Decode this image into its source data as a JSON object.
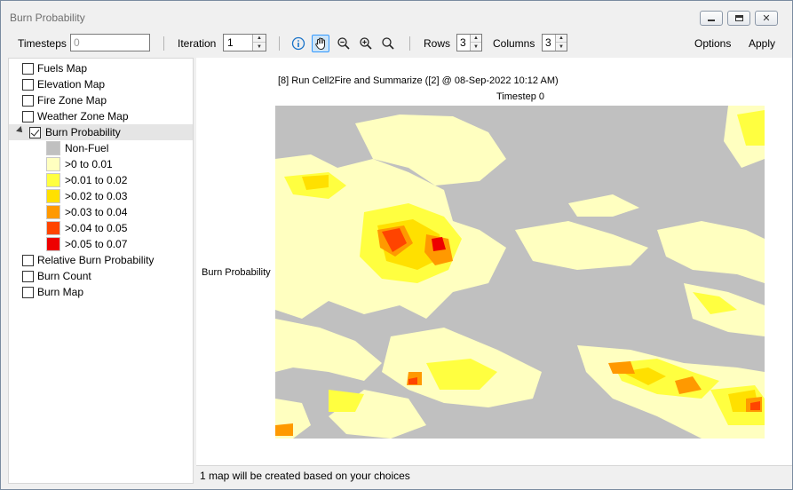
{
  "window": {
    "title": "Burn Probability"
  },
  "toolbar": {
    "timesteps_label": "Timesteps",
    "timesteps_value": "0",
    "iteration_label": "Iteration",
    "iteration_value": "1",
    "rows_label": "Rows",
    "rows_value": "3",
    "columns_label": "Columns",
    "columns_value": "3",
    "options_label": "Options",
    "apply_label": "Apply"
  },
  "tree": {
    "items": [
      {
        "label": "Fuels Map",
        "checked": false
      },
      {
        "label": "Elevation Map",
        "checked": false
      },
      {
        "label": "Fire Zone Map",
        "checked": false
      },
      {
        "label": "Weather Zone Map",
        "checked": false
      },
      {
        "label": "Burn Probability",
        "checked": true
      },
      {
        "label": "Relative Burn Probability",
        "checked": false
      },
      {
        "label": "Burn Count",
        "checked": false
      },
      {
        "label": "Burn Map",
        "checked": false
      }
    ],
    "legend": [
      {
        "label": "Non-Fuel",
        "color": "#c0c0c0"
      },
      {
        "label": ">0 to 0.01",
        "color": "#ffffc0"
      },
      {
        "label": ">0.01 to 0.02",
        "color": "#ffff40"
      },
      {
        "label": ">0.02 to 0.03",
        "color": "#ffe000"
      },
      {
        "label": ">0.03 to 0.04",
        "color": "#ff9900"
      },
      {
        "label": ">0.04 to 0.05",
        "color": "#ff4400"
      },
      {
        "label": ">0.05 to 0.07",
        "color": "#ee0000"
      }
    ]
  },
  "map": {
    "title": "[8] Run Cell2Fire and Summarize ([2] @ 08-Sep-2022 10:12 AM)",
    "subtitle": "Timestep 0",
    "ylabel": "Burn Probability"
  },
  "status": {
    "text": "1 map will be created based on your choices"
  },
  "icons": {
    "info": "info-icon",
    "pan": "pan-hand-icon",
    "zoom_out": "zoom-out-icon",
    "zoom_in": "zoom-in-icon",
    "zoom_extent": "zoom-extent-icon"
  }
}
